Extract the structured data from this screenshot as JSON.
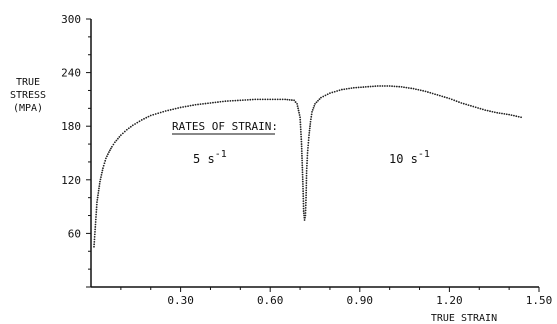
{
  "chart_data": {
    "type": "scatter",
    "title": "",
    "ylabel_lines": [
      "TRUE",
      "STRESS",
      "(MPA)"
    ],
    "xlabel": "TRUE STRAIN",
    "xlim": [
      0,
      1.5
    ],
    "ylim": [
      0,
      300
    ],
    "xticks": [
      0.3,
      0.6,
      0.9,
      1.2,
      1.5
    ],
    "xtick_labels": [
      "0.30",
      "0.60",
      "0.90",
      "1.20",
      "1.50"
    ],
    "yticks": [
      60,
      120,
      180,
      240,
      300
    ],
    "ytick_labels": [
      "60",
      "120",
      "180",
      "240",
      "300"
    ],
    "grid": false,
    "annotations": {
      "heading": "RATES OF STRAIN:",
      "rate1": {
        "value": "5 s",
        "exp": "-1"
      },
      "rate2": {
        "value": "10 s",
        "exp": "-1"
      }
    },
    "series": [
      {
        "x": [
          0.01,
          0.015,
          0.02,
          0.03,
          0.04,
          0.05,
          0.06,
          0.07,
          0.08,
          0.1,
          0.12,
          0.14,
          0.17,
          0.2,
          0.25,
          0.3,
          0.35,
          0.4,
          0.45,
          0.5,
          0.55,
          0.6,
          0.65,
          0.68,
          0.69,
          0.7,
          0.705,
          0.71,
          0.712,
          0.715,
          0.718,
          0.72,
          0.722,
          0.725,
          0.73,
          0.735,
          0.74,
          0.75,
          0.77,
          0.8,
          0.84,
          0.88,
          0.92,
          0.96,
          1.0,
          1.04,
          1.08,
          1.12,
          1.16,
          1.2,
          1.24,
          1.28,
          1.32,
          1.36,
          1.4,
          1.44
        ],
        "y": [
          45,
          70,
          95,
          118,
          133,
          144,
          151,
          157,
          162,
          170,
          176,
          181,
          187,
          192,
          197,
          201,
          204,
          206,
          208,
          209,
          210,
          210,
          210,
          209,
          205,
          190,
          160,
          110,
          85,
          75,
          80,
          100,
          130,
          150,
          170,
          185,
          196,
          205,
          212,
          217,
          221,
          223,
          224,
          225,
          225,
          224,
          222,
          219,
          215,
          211,
          206,
          202,
          198,
          195,
          193,
          190
        ]
      }
    ]
  }
}
